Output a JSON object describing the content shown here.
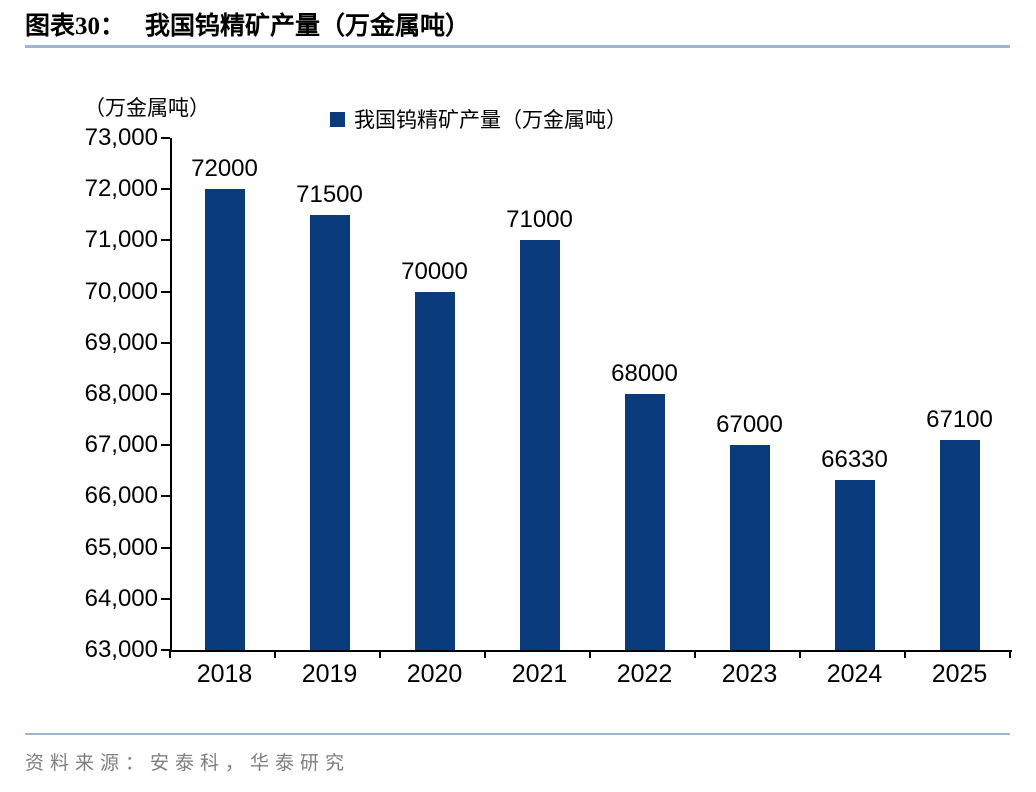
{
  "header": {
    "figure_label": "图表30：",
    "title": "我国钨精矿产量（万金属吨）"
  },
  "footer": {
    "source": "资料来源：安泰科，华泰研究"
  },
  "colors": {
    "bar": "#0a3b7c",
    "divider": "#9db6d4",
    "axis": "#000000",
    "source_text": "#7f7f7f"
  },
  "chart_data": {
    "type": "bar",
    "title": "我国钨精矿产量（万金属吨）",
    "unit_label": "（万金属吨）",
    "legend": [
      {
        "label": "我国钨精矿产量（万金属吨）",
        "color": "#0a3b7c"
      }
    ],
    "legend_position": "top",
    "categories": [
      "2018",
      "2019",
      "2020",
      "2021",
      "2022",
      "2023",
      "2024",
      "2025"
    ],
    "values": [
      72000,
      71500,
      70000,
      71000,
      68000,
      67000,
      66330,
      67100
    ],
    "value_labels": [
      "72000",
      "71500",
      "70000",
      "71000",
      "68000",
      "67000",
      "66330",
      "67100"
    ],
    "xlabel": "",
    "ylabel": "（万金属吨）",
    "ylim": [
      63000,
      73000
    ],
    "ytick_step": 1000,
    "yticks": [
      "73,000",
      "72,000",
      "71,000",
      "70,000",
      "69,000",
      "68,000",
      "67,000",
      "66,000",
      "65,000",
      "64,000",
      "63,000"
    ],
    "grid": false,
    "bar_color": "#0a3b7c"
  }
}
